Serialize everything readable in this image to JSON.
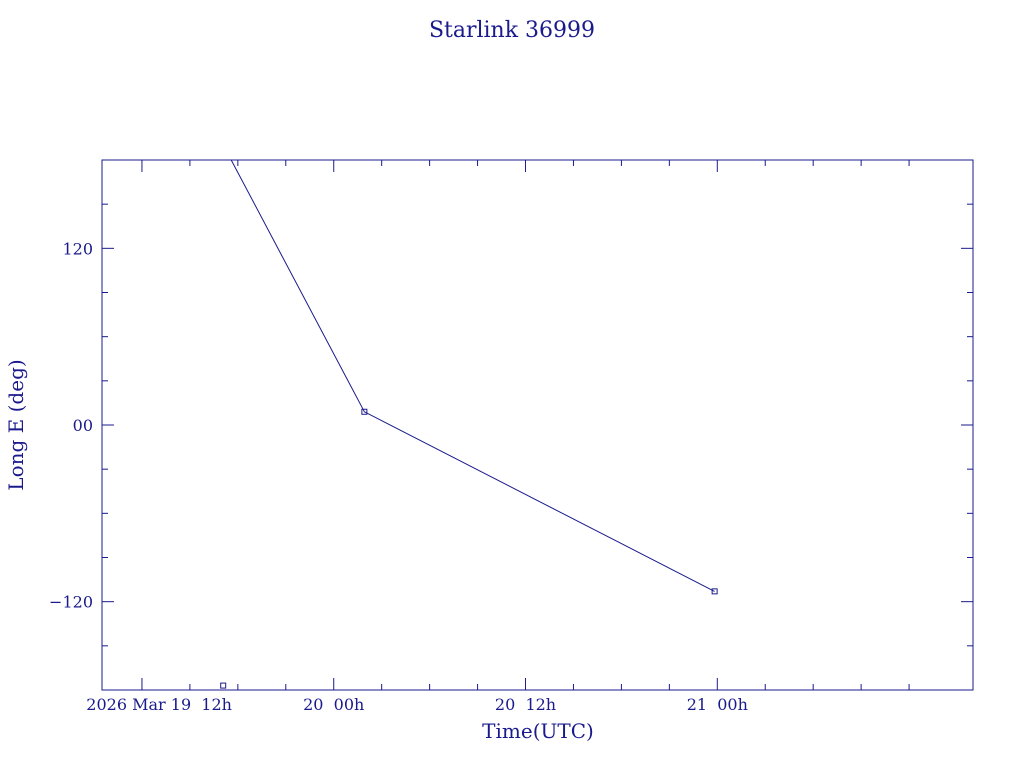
{
  "chart_data": {
    "type": "line",
    "title": "Starlink 36999",
    "xlabel": "Time(UTC)",
    "ylabel": "Long E (deg)",
    "x_unit": "hours",
    "xlim": [
      "2026-03-19T09:30",
      "2026-03-21T16:00"
    ],
    "ylim": [
      -180,
      180
    ],
    "x_ticks": [
      {
        "value": "2026-03-19T12:00",
        "label": "2026 Mar 19  12h"
      },
      {
        "value": "2026-03-20T00:00",
        "label": "20  00h"
      },
      {
        "value": "2026-03-20T12:00",
        "label": "20  12h"
      },
      {
        "value": "2026-03-21T00:00",
        "label": "21  00h"
      }
    ],
    "x_minor_ticks": [
      "2026-03-19T15:00",
      "2026-03-19T18:00",
      "2026-03-19T21:00",
      "2026-03-20T03:00",
      "2026-03-20T06:00",
      "2026-03-20T09:00",
      "2026-03-20T15:00",
      "2026-03-20T18:00",
      "2026-03-20T21:00",
      "2026-03-21T03:00",
      "2026-03-21T06:00",
      "2026-03-21T09:00",
      "2026-03-21T12:00"
    ],
    "y_ticks": [
      {
        "value": 120,
        "label": "120"
      },
      {
        "value": 0,
        "label": "00"
      },
      {
        "value": -120,
        "label": "−120"
      }
    ],
    "y_minor_ticks": [
      -150,
      -90,
      -60,
      -30,
      30,
      60,
      90,
      150
    ],
    "grid": false,
    "series": [
      {
        "points": [
          {
            "x": "2026-03-19T17:35",
            "y": 180
          },
          {
            "x": "2026-03-20T01:55",
            "y": 9
          },
          {
            "x": "2026-03-20T23:50",
            "y": -113
          }
        ],
        "markers": [
          {
            "x": "2026-03-20T01:55",
            "y": 9
          },
          {
            "x": "2026-03-20T23:50",
            "y": -113
          }
        ]
      }
    ],
    "extra_markers": [
      {
        "x": "2026-03-19T17:05",
        "y": -177
      }
    ]
  }
}
